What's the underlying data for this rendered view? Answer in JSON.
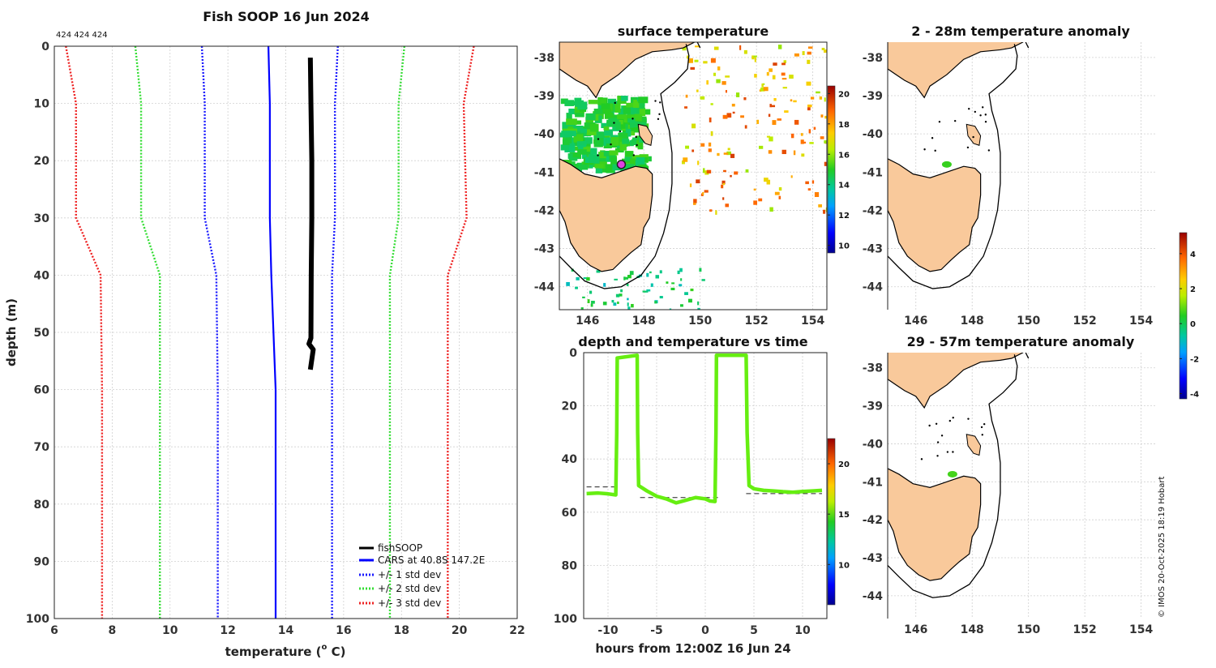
{
  "figure": {
    "copyright": "© IMOS 20-Oct-2025 18:19 Hobart",
    "colors": {
      "land": "#f9c99b",
      "coast": "#000000",
      "profile": "#000000",
      "cars": "#0000ff",
      "std1": "#1a1aff",
      "std2": "#33dd33",
      "std3": "#ee2222",
      "trace": "#66ee11"
    }
  },
  "chart_data": [
    {
      "id": "profile",
      "type": "line",
      "title": "Fish SOOP 16 Jun 2024",
      "corner_label": "424 424 424",
      "xlabel": "temperature (",
      "xlabel_sup": "o",
      "xlabel_tail": " C)",
      "ylabel": "depth (m)",
      "xlim": [
        6,
        22
      ],
      "ylim": [
        100,
        0
      ],
      "xticks": [
        6,
        8,
        10,
        12,
        14,
        16,
        18,
        20,
        22
      ],
      "yticks": [
        0,
        10,
        20,
        30,
        40,
        50,
        60,
        70,
        80,
        90,
        100
      ],
      "legend_position": "bottom-right",
      "depths": [
        0,
        10,
        30,
        40,
        60,
        100
      ],
      "series": [
        {
          "name": "fishSOOP",
          "style": "solid-thick",
          "color": "#000000",
          "points": [
            [
              14.85,
              2
            ],
            [
              14.87,
              10
            ],
            [
              14.9,
              20
            ],
            [
              14.9,
              30
            ],
            [
              14.88,
              40
            ],
            [
              14.87,
              51
            ],
            [
              14.8,
              52
            ],
            [
              14.95,
              53
            ],
            [
              14.85,
              56.5
            ]
          ]
        },
        {
          "name": "CARS at 40.8S 147.2E",
          "style": "solid",
          "color": "#0000ff",
          "values": [
            13.4,
            13.45,
            13.45,
            13.5,
            13.65,
            13.65
          ]
        },
        {
          "name": "+/- 1 std dev",
          "style": "dotted",
          "color": "#1a1aff",
          "low": [
            11.1,
            11.2,
            11.2,
            11.6,
            11.65,
            11.65
          ],
          "high": [
            15.8,
            15.7,
            15.7,
            15.6,
            15.6,
            15.6
          ]
        },
        {
          "name": "+/- 2 std dev",
          "style": "dotted",
          "color": "#33dd33",
          "low": [
            8.8,
            9.0,
            9.0,
            9.65,
            9.65,
            9.65
          ],
          "high": [
            18.1,
            17.9,
            17.9,
            17.6,
            17.6,
            17.6
          ]
        },
        {
          "name": "+/- 3 std dev",
          "style": "dotted",
          "color": "#ee2222",
          "low": [
            6.4,
            6.75,
            6.75,
            7.6,
            7.65,
            7.65
          ],
          "high": [
            20.5,
            20.15,
            20.25,
            19.6,
            19.6,
            19.6
          ]
        }
      ]
    },
    {
      "id": "sst_map",
      "type": "heatmap",
      "title": "surface temperature",
      "xlim": [
        145,
        154.5
      ],
      "ylim": [
        -44.6,
        -37.6
      ],
      "xticks": [
        146,
        148,
        150,
        152,
        154
      ],
      "yticks": [
        -38,
        -39,
        -40,
        -41,
        -42,
        -43,
        -44
      ],
      "colorbar": {
        "min": 9.5,
        "max": 20.5,
        "ticks": [
          10,
          12,
          14,
          16,
          18,
          20
        ]
      },
      "marker": {
        "lon": 147.2,
        "lat": -40.8
      }
    },
    {
      "id": "depth_time",
      "type": "scatter",
      "title": "depth and temperature vs time",
      "xlabel": "hours from 12:00Z 16 Jun 24",
      "xlim": [
        -12.5,
        12.5
      ],
      "ylim": [
        100,
        0
      ],
      "xticks": [
        -10,
        -5,
        0,
        5,
        10
      ],
      "yticks": [
        0,
        20,
        40,
        60,
        80,
        100
      ],
      "colorbar": {
        "min": 6,
        "max": 22.5,
        "ticks": [
          10,
          15,
          20
        ]
      },
      "bottom_lines": [
        {
          "x0": -12.2,
          "x1": -9.2,
          "depth": 50.5
        },
        {
          "x0": -6.7,
          "x1": 1.3,
          "depth": 54.5
        },
        {
          "x0": 4.2,
          "x1": 12,
          "depth": 53
        }
      ],
      "trace": [
        [
          -12.2,
          53
        ],
        [
          -11,
          52.8
        ],
        [
          -10,
          53.1
        ],
        [
          -9.2,
          53.5
        ],
        [
          -9.1,
          30
        ],
        [
          -9.05,
          2
        ],
        [
          -7,
          1
        ],
        [
          -6.95,
          30
        ],
        [
          -6.85,
          50
        ],
        [
          -6,
          52
        ],
        [
          -5,
          54
        ],
        [
          -4,
          55
        ],
        [
          -3,
          56.5
        ],
        [
          -2,
          55.5
        ],
        [
          -1,
          54.5
        ],
        [
          0,
          55
        ],
        [
          0.5,
          55.8
        ],
        [
          1,
          56
        ],
        [
          1.1,
          30
        ],
        [
          1.15,
          1
        ],
        [
          4.2,
          1
        ],
        [
          4.3,
          30
        ],
        [
          4.5,
          50
        ],
        [
          5,
          51.2
        ],
        [
          6,
          51.8
        ],
        [
          7,
          52
        ],
        [
          8,
          52.3
        ],
        [
          9,
          52.5
        ],
        [
          10,
          52.2
        ],
        [
          11,
          52
        ],
        [
          12,
          51.8
        ]
      ]
    },
    {
      "id": "anomaly_shallow",
      "type": "heatmap",
      "title": "2 - 28m temperature anomaly",
      "xlim": [
        145,
        154.5
      ],
      "ylim": [
        -44.6,
        -37.6
      ],
      "xticks": [
        146,
        148,
        150,
        152,
        154
      ],
      "yticks": [
        -38,
        -39,
        -40,
        -41,
        -42,
        -43,
        -44
      ],
      "spot": {
        "lon": 147.1,
        "lat": -40.8,
        "anomaly": 0.6
      }
    },
    {
      "id": "anomaly_deep",
      "type": "heatmap",
      "title": "29 - 57m temperature anomaly",
      "xlim": [
        145,
        154.5
      ],
      "ylim": [
        -44.6,
        -37.6
      ],
      "xticks": [
        146,
        148,
        150,
        152,
        154
      ],
      "yticks": [
        -38,
        -39,
        -40,
        -41,
        -42,
        -43,
        -44
      ],
      "spot": {
        "lon": 147.3,
        "lat": -40.8,
        "anomaly": 0.7
      },
      "colorbar": {
        "min": -4.3,
        "max": 5.2,
        "ticks": [
          -4,
          -2,
          0,
          2,
          4
        ]
      }
    }
  ]
}
